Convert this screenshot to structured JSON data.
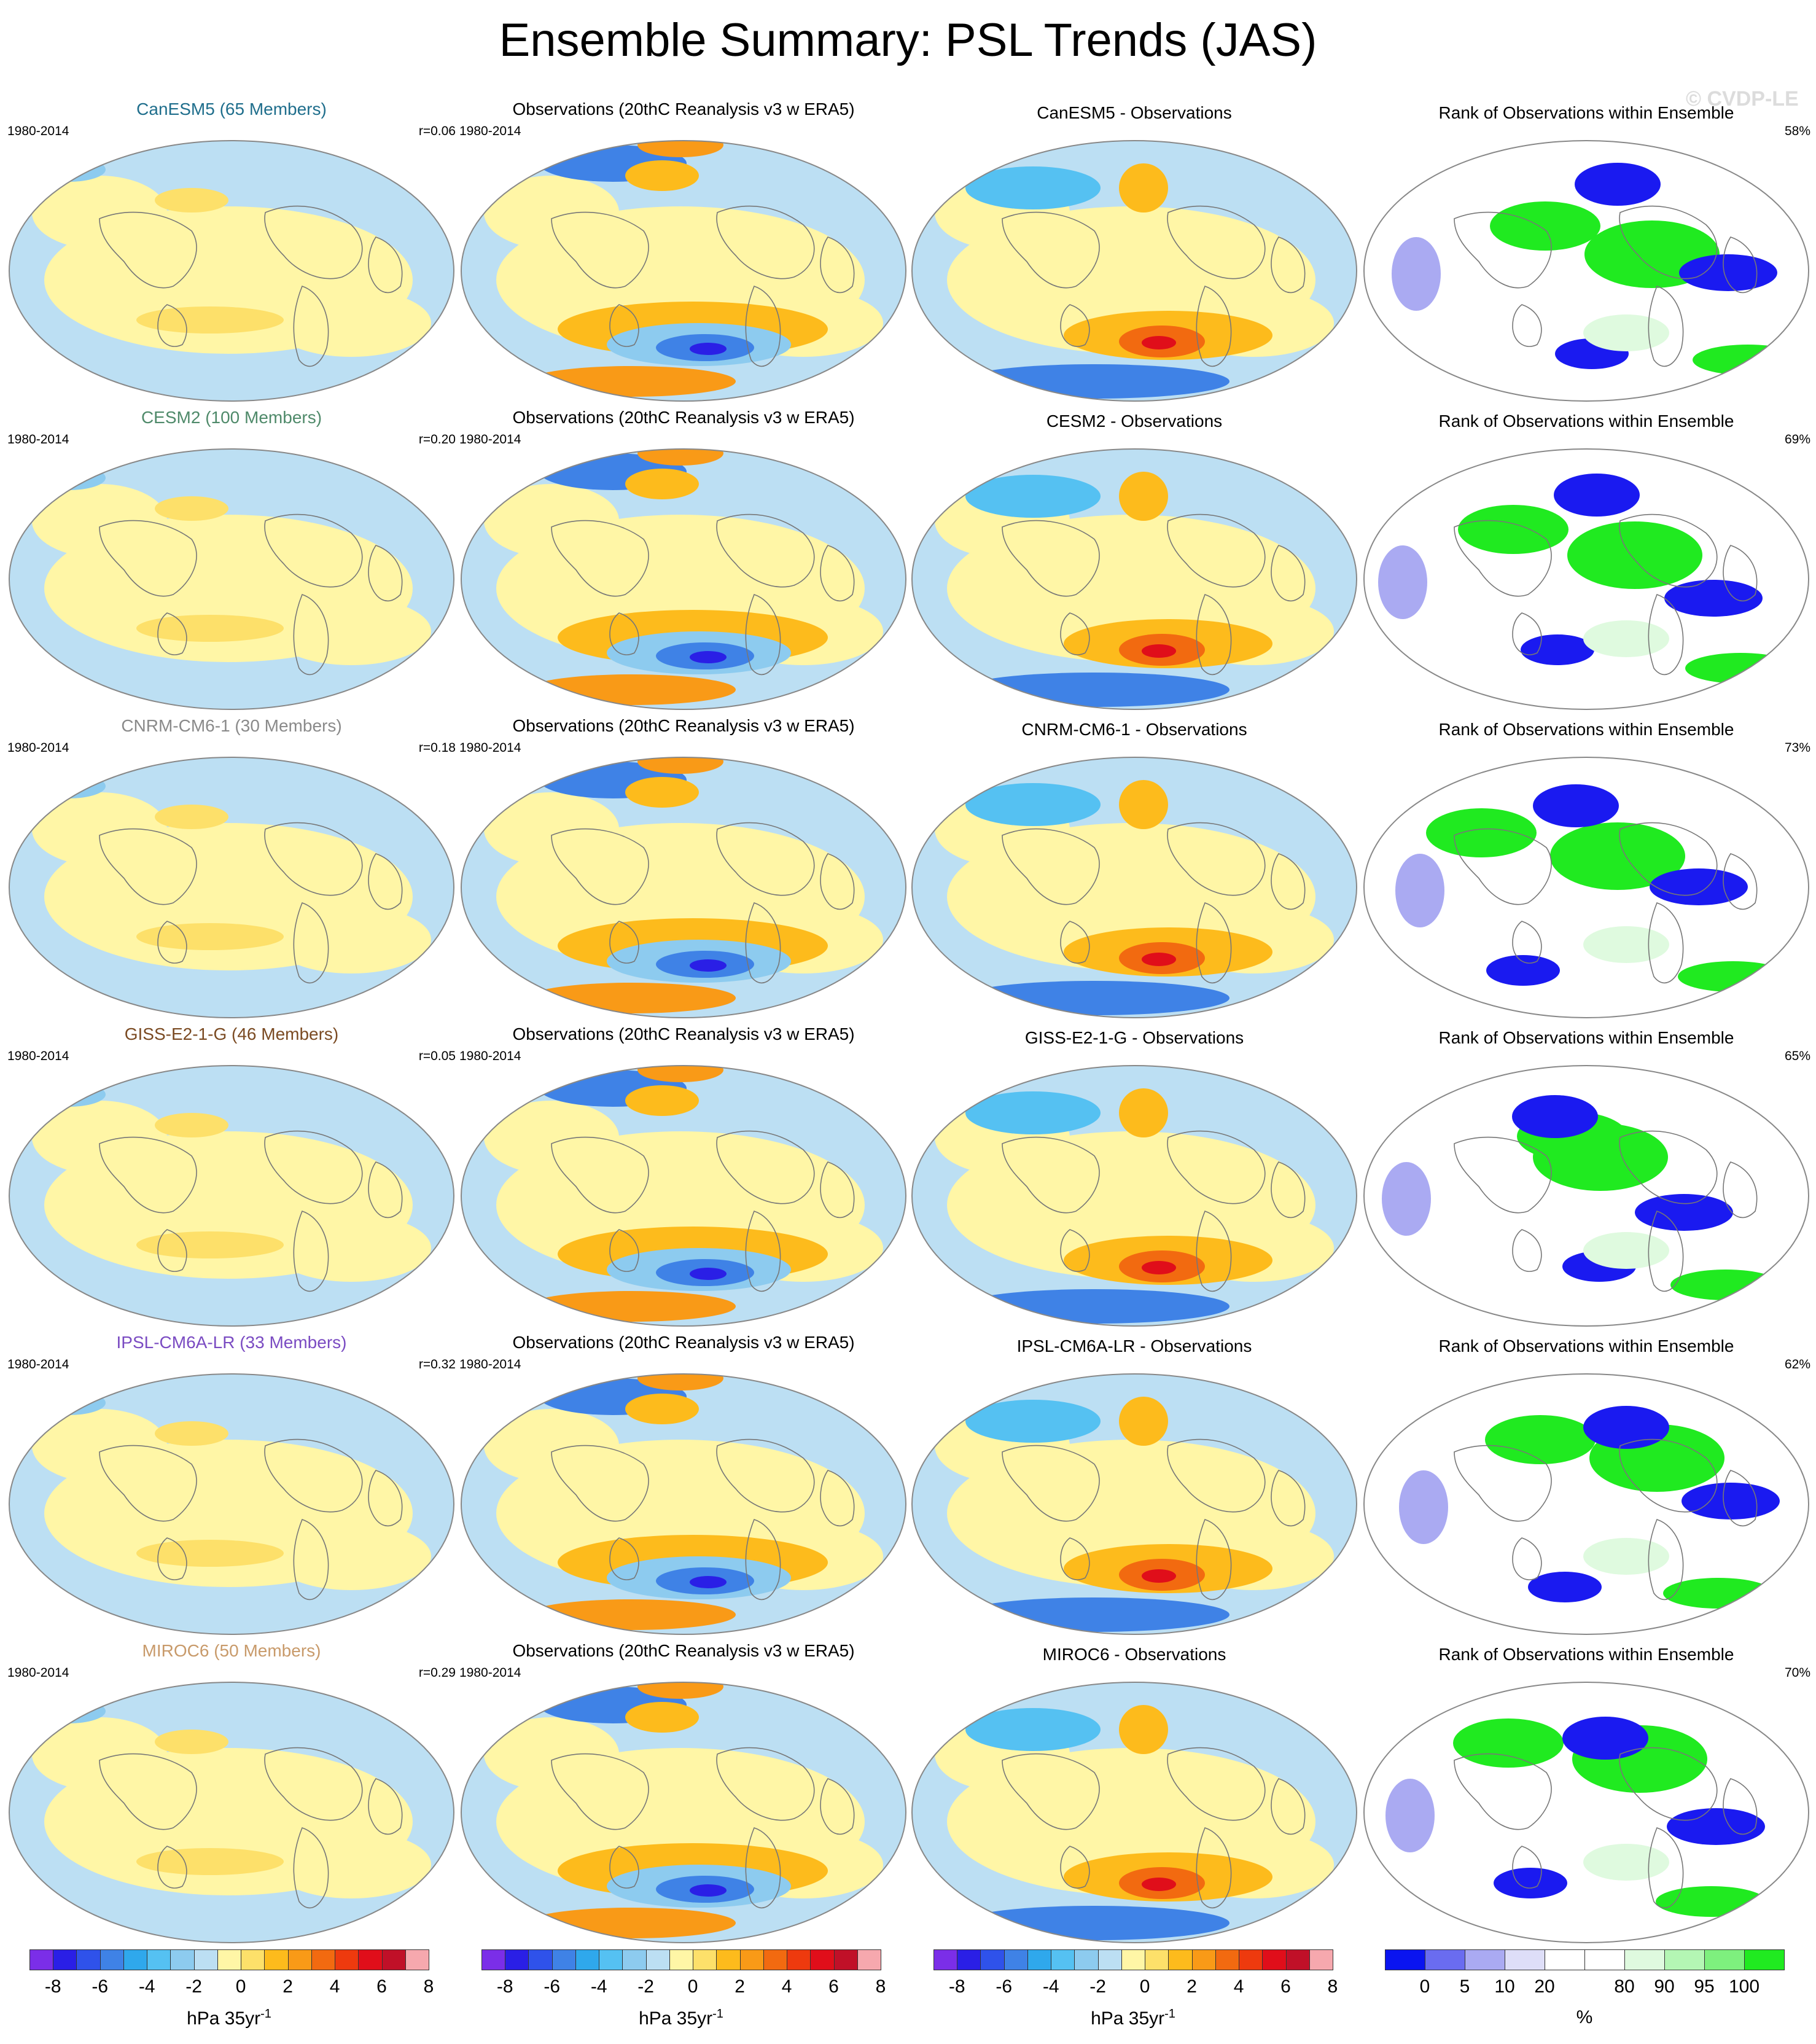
{
  "title": "Ensemble Summary: PSL Trends (JAS)",
  "watermark": "© CVDP-LE",
  "obs_title": "Observations (20thC Reanalysis v3 w ERA5)",
  "rank_title": "Rank of Observations within Ensemble",
  "period": "1980-2014",
  "rows": [
    {
      "model_title": "CanESM5 (65 Members)",
      "title_color": "#1f6e8c",
      "r": "r=0.06",
      "diff_title": "CanESM5 - Observations",
      "rank_pct": "58%"
    },
    {
      "model_title": "CESM2 (100 Members)",
      "title_color": "#4f8a6a",
      "r": "r=0.20",
      "diff_title": "CESM2 - Observations",
      "rank_pct": "69%"
    },
    {
      "model_title": "CNRM-CM6-1 (30 Members)",
      "title_color": "#8a8a8a",
      "r": "r=0.18",
      "diff_title": "CNRM-CM6-1 - Observations",
      "rank_pct": "73%"
    },
    {
      "model_title": "GISS-E2-1-G (46 Members)",
      "title_color": "#7a4a22",
      "r": "r=0.05",
      "diff_title": "GISS-E2-1-G - Observations",
      "rank_pct": "65%"
    },
    {
      "model_title": "IPSL-CM6A-LR (33 Members)",
      "title_color": "#7a4bc2",
      "r": "r=0.32",
      "diff_title": "IPSL-CM6A-LR - Observations",
      "rank_pct": "62%"
    },
    {
      "model_title": "MIROC6 (50 Members)",
      "title_color": "#c89a6a",
      "r": "r=0.29",
      "diff_title": "MIROC6 - Observations",
      "rank_pct": "70%"
    }
  ],
  "psl_colorbar": {
    "colors": [
      "#7b2ee8",
      "#2a1fe6",
      "#2f52ea",
      "#3f82e6",
      "#2fa8ec",
      "#55c1f2",
      "#8dcbef",
      "#bcdff3",
      "#fff6a6",
      "#fde06a",
      "#fdbb1c",
      "#f99a17",
      "#f26a10",
      "#ee3a0e",
      "#e00e1a",
      "#c01028",
      "#f6a8ae"
    ],
    "ticks": [
      "-8",
      "-6",
      "-4",
      "-2",
      "0",
      "2",
      "4",
      "6",
      "8"
    ],
    "unit": "hPa 35yr",
    "unit_sup": "-1"
  },
  "rank_colorbar": {
    "colors": [
      "#0a14f0",
      "#6a6cf0",
      "#aaaaf2",
      "#dedef8",
      "#ffffff",
      "#ffffff",
      "#dffadf",
      "#b4f6b4",
      "#7ef07e",
      "#20ea20"
    ],
    "ticks": [
      "0",
      "5",
      "10",
      "20",
      "80",
      "90",
      "95",
      "100"
    ],
    "unit": "%"
  },
  "colors": {
    "ocean_light_blue": "#bcdff3",
    "land_yellow": "#fff6a6",
    "rank_blue": "#1a1af0",
    "rank_green": "#20ea20"
  }
}
